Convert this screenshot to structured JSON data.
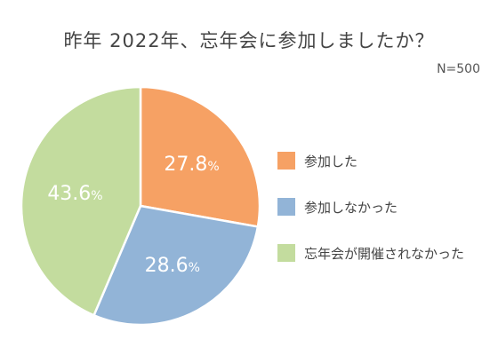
{
  "title": "昨年 2022年、忘年会に参加しましたか？",
  "note": "N=500",
  "chart_data": {
    "type": "pie",
    "title": "昨年 2022年、忘年会に参加しましたか？",
    "categories": [
      "参加した",
      "参加しなかった",
      "忘年会が開催されなかった"
    ],
    "values": [
      27.8,
      28.6,
      43.6
    ],
    "value_labels": [
      "27.8%",
      "28.6%",
      "43.6%"
    ],
    "colors": [
      "#F6A164",
      "#92B4D7",
      "#C3DC9E"
    ],
    "legend_position": "right",
    "start": "top",
    "direction": "clockwise"
  }
}
